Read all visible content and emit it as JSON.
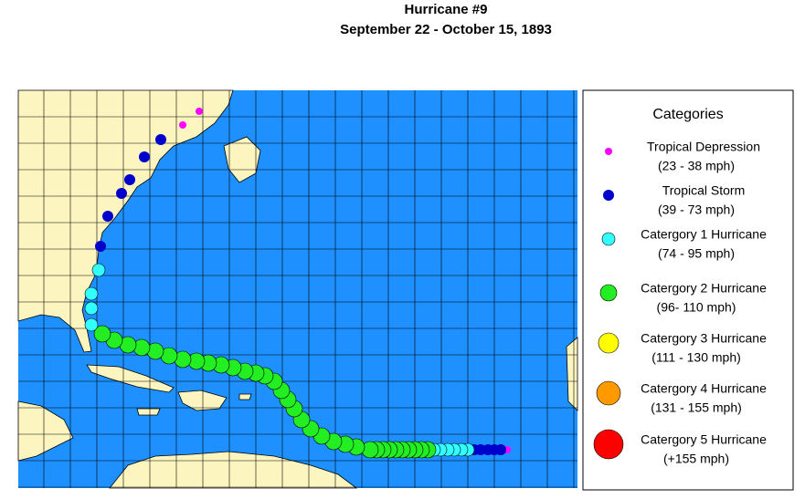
{
  "header": {
    "title": "Hurricane #9",
    "subtitle": "September 22 - October 15, 1893"
  },
  "legend": {
    "title": "Categories",
    "items": [
      {
        "name": "Tropical Depression",
        "range": "(23 - 38 mph)",
        "color": "#ff00ff"
      },
      {
        "name": "Tropical Storm",
        "range": "(39 - 73 mph)",
        "color": "#0000cc"
      },
      {
        "name": "Catergory 1 Hurricane",
        "range": "(74 - 95 mph)",
        "color": "#33ffff"
      },
      {
        "name": "Catergory 2 Hurricane",
        "range": "(96- 110 mph)",
        "color": "#22ee22"
      },
      {
        "name": "Catergory 3 Hurricane",
        "range": "(111 - 130 mph)",
        "color": "#ffff00"
      },
      {
        "name": "Catergory 4 Hurricane",
        "range": "(131 - 155 mph)",
        "color": "#ff9900"
      },
      {
        "name": "Catergory 5 Hurricane",
        "range": "(+155 mph)",
        "color": "#ff0000"
      }
    ]
  }
}
